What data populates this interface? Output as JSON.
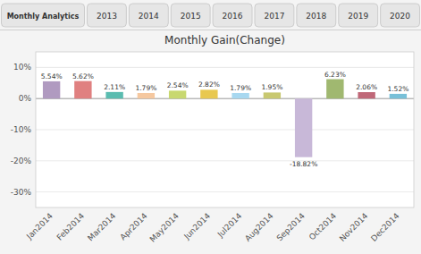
{
  "chart_data": {
    "type": "bar",
    "title": "Monthly Gain(Change)",
    "annotations": [
      "Monthly Analytics",
      "2013",
      "2014",
      "2015",
      "2016",
      "2017",
      "2018",
      "2019",
      "2020"
    ],
    "categories": [
      "Jan2014",
      "Feb2014",
      "Mar2014",
      "Apr2014",
      "May2014",
      "Jun2014",
      "Jul2014",
      "Aug2014",
      "Sep2014",
      "Oct2014",
      "Nov2014",
      "Dec2014"
    ],
    "values": [
      5.54,
      5.62,
      2.11,
      1.79,
      2.54,
      2.82,
      1.79,
      1.95,
      -18.82,
      6.23,
      2.06,
      1.52
    ],
    "value_labels": [
      "5.54%",
      "5.62%",
      "2.11%",
      "1.79%",
      "2.54%",
      "2.82%",
      "1.79%",
      "1.95%",
      "-18.82%",
      "6.23%",
      "2.06%",
      "1.52%"
    ],
    "data_labels": true,
    "colors": [
      "#b09ac0",
      "#e08080",
      "#5abcb0",
      "#f5c8a0",
      "#c8d870",
      "#e8c850",
      "#a8d8f0",
      "#c8c870",
      "#c8b8d8",
      "#a0b870",
      "#c06878",
      "#78c0d8"
    ],
    "ylim": [
      -35,
      15
    ],
    "yticks": [
      {
        "value": 10,
        "label": "10%"
      },
      {
        "value": 0,
        "label": "0%"
      },
      {
        "value": -10,
        "label": "-10%"
      },
      {
        "value": -20,
        "label": "-20%"
      },
      {
        "value": -30,
        "label": "-30%"
      }
    ],
    "grid": true
  }
}
